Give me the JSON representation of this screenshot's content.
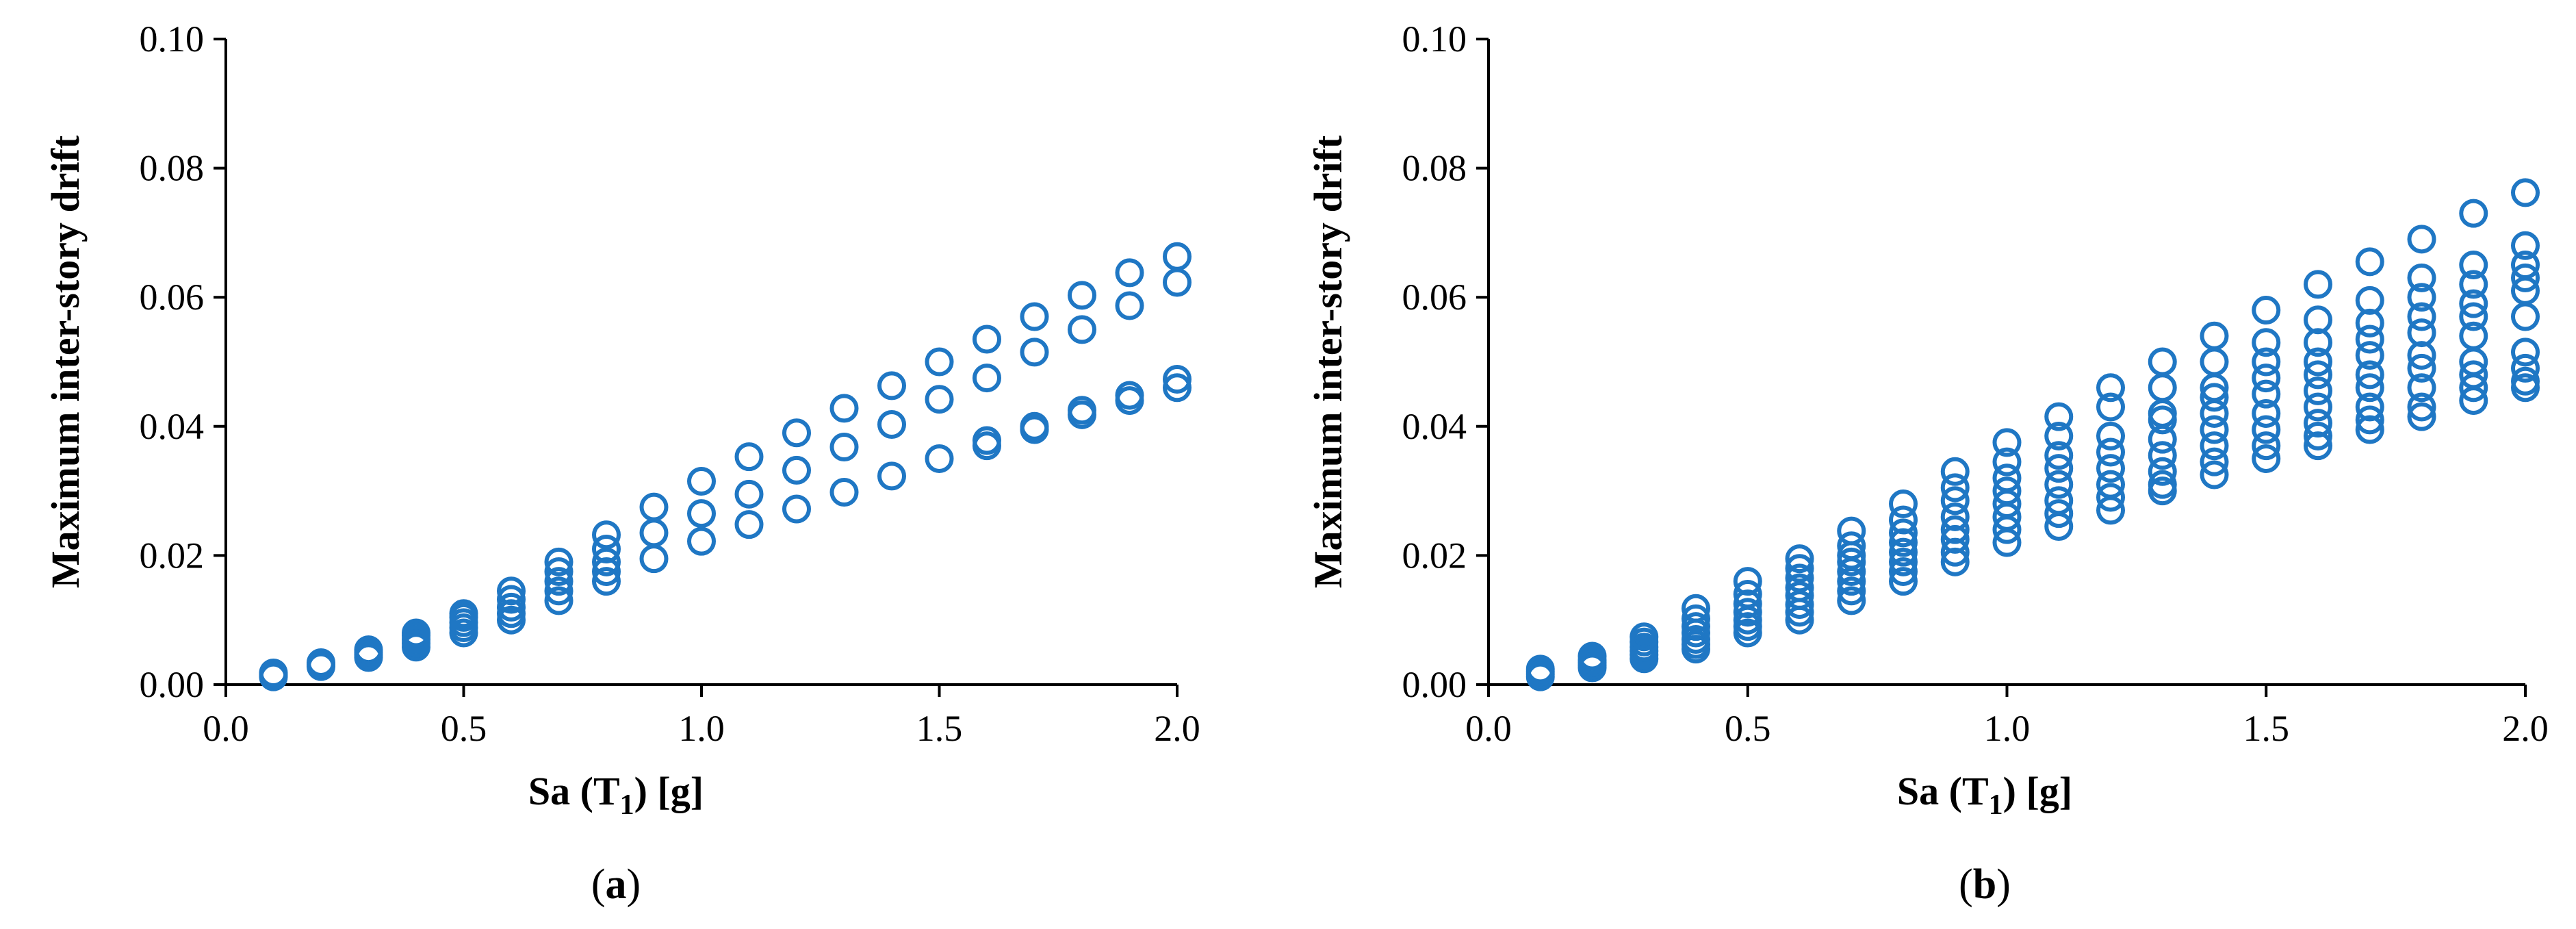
{
  "colors": {
    "marker": "#1f77c4",
    "axis": "#000000"
  },
  "chart_data": [
    {
      "type": "scatter",
      "panel_label": {
        "open": "(",
        "letter": "a",
        "close": ")"
      },
      "xlabel": {
        "base": "Sa (T",
        "sub": "1",
        "rest": ") [g]"
      },
      "ylabel": "Maximum inter-story drift",
      "xlim": [
        0.0,
        2.0
      ],
      "ylim": [
        0.0,
        0.1
      ],
      "x_ticks": [
        "0.0",
        "0.5",
        "1.0",
        "1.5",
        "2.0"
      ],
      "y_ticks": [
        "0.00",
        "0.02",
        "0.04",
        "0.06",
        "0.08",
        "0.10"
      ],
      "grid": false,
      "marker": "open-circle",
      "series": [
        {
          "x": [
            0.1,
            0.1,
            0.1,
            0.2,
            0.2,
            0.2,
            0.3,
            0.3,
            0.3,
            0.3,
            0.4,
            0.4,
            0.4,
            0.4,
            0.4,
            0.5,
            0.5,
            0.5,
            0.5,
            0.5,
            0.6,
            0.6,
            0.6,
            0.6,
            0.6,
            0.7,
            0.7,
            0.7,
            0.7,
            0.7,
            0.8,
            0.8,
            0.8,
            0.8,
            0.8,
            0.9,
            0.9,
            0.9,
            1.0,
            1.0,
            1.0,
            1.1,
            1.1,
            1.1,
            1.2,
            1.2,
            1.2,
            1.3,
            1.3,
            1.3,
            1.4,
            1.4,
            1.4,
            1.5,
            1.5,
            1.5,
            1.6,
            1.6,
            1.6,
            1.6,
            1.7,
            1.7,
            1.7,
            1.7,
            1.8,
            1.8,
            1.8,
            1.8,
            1.9,
            1.9,
            1.9,
            1.9,
            2.0,
            2.0,
            2.0,
            2.0
          ],
          "y": [
            0.0012,
            0.0015,
            0.0018,
            0.0028,
            0.0031,
            0.0034,
            0.0042,
            0.0046,
            0.005,
            0.0054,
            0.0058,
            0.0064,
            0.007,
            0.0076,
            0.008,
            0.008,
            0.0088,
            0.0096,
            0.0104,
            0.011,
            0.01,
            0.011,
            0.012,
            0.0132,
            0.0145,
            0.013,
            0.0145,
            0.016,
            0.0175,
            0.019,
            0.016,
            0.0175,
            0.019,
            0.021,
            0.0232,
            0.0195,
            0.0235,
            0.0275,
            0.0222,
            0.0265,
            0.0315,
            0.0248,
            0.0295,
            0.0353,
            0.0272,
            0.0332,
            0.039,
            0.0298,
            0.0368,
            0.0428,
            0.0323,
            0.0403,
            0.0463,
            0.035,
            0.0442,
            0.05,
            0.037,
            0.0378,
            0.0475,
            0.0535,
            0.0395,
            0.04,
            0.0515,
            0.057,
            0.0418,
            0.0425,
            0.055,
            0.0603,
            0.044,
            0.0448,
            0.0587,
            0.0638,
            0.046,
            0.0473,
            0.0623,
            0.0663
          ]
        }
      ]
    },
    {
      "type": "scatter",
      "panel_label": {
        "open": "(",
        "letter": "b",
        "close": ")"
      },
      "xlabel": {
        "base": "Sa (T",
        "sub": "1",
        "rest": ") [g]"
      },
      "ylabel": "Maximum inter-story drift",
      "xlim": [
        0.0,
        2.0
      ],
      "ylim": [
        0.0,
        0.1
      ],
      "x_ticks": [
        "0.0",
        "0.5",
        "1.0",
        "1.5",
        "2.0"
      ],
      "y_ticks": [
        "0.00",
        "0.02",
        "0.04",
        "0.06",
        "0.08",
        "0.10"
      ],
      "grid": false,
      "marker": "open-circle",
      "series": [
        {
          "x": [
            0.1,
            0.1,
            0.1,
            0.1,
            0.2,
            0.2,
            0.2,
            0.2,
            0.2,
            0.3,
            0.3,
            0.3,
            0.3,
            0.3,
            0.3,
            0.4,
            0.4,
            0.4,
            0.4,
            0.4,
            0.4,
            0.4,
            0.5,
            0.5,
            0.5,
            0.5,
            0.5,
            0.5,
            0.5,
            0.6,
            0.6,
            0.6,
            0.6,
            0.6,
            0.6,
            0.6,
            0.6,
            0.7,
            0.7,
            0.7,
            0.7,
            0.7,
            0.7,
            0.7,
            0.7,
            0.8,
            0.8,
            0.8,
            0.8,
            0.8,
            0.8,
            0.8,
            0.8,
            0.9,
            0.9,
            0.9,
            0.9,
            0.9,
            0.9,
            0.9,
            0.9,
            1.0,
            1.0,
            1.0,
            1.0,
            1.0,
            1.0,
            1.0,
            1.0,
            1.1,
            1.1,
            1.1,
            1.1,
            1.1,
            1.1,
            1.1,
            1.1,
            1.2,
            1.2,
            1.2,
            1.2,
            1.2,
            1.2,
            1.2,
            1.2,
            1.3,
            1.3,
            1.3,
            1.3,
            1.3,
            1.3,
            1.3,
            1.3,
            1.3,
            1.4,
            1.4,
            1.4,
            1.4,
            1.4,
            1.4,
            1.4,
            1.4,
            1.4,
            1.5,
            1.5,
            1.5,
            1.5,
            1.5,
            1.5,
            1.5,
            1.5,
            1.5,
            1.6,
            1.6,
            1.6,
            1.6,
            1.6,
            1.6,
            1.6,
            1.6,
            1.6,
            1.6,
            1.7,
            1.7,
            1.7,
            1.7,
            1.7,
            1.7,
            1.7,
            1.7,
            1.7,
            1.7,
            1.8,
            1.8,
            1.8,
            1.8,
            1.8,
            1.8,
            1.8,
            1.8,
            1.8,
            1.8,
            1.9,
            1.9,
            1.9,
            1.9,
            1.9,
            1.9,
            1.9,
            1.9,
            1.9,
            1.9,
            2.0,
            2.0,
            2.0,
            2.0,
            2.0,
            2.0,
            2.0,
            2.0,
            2.0,
            2.0
          ],
          "y": [
            0.0012,
            0.0016,
            0.002,
            0.0024,
            0.0026,
            0.003,
            0.0034,
            0.0038,
            0.0044,
            0.004,
            0.0046,
            0.0052,
            0.0058,
            0.0066,
            0.0074,
            0.0055,
            0.0062,
            0.007,
            0.008,
            0.009,
            0.0102,
            0.0118,
            0.008,
            0.009,
            0.01,
            0.0112,
            0.0125,
            0.014,
            0.016,
            0.01,
            0.0112,
            0.0124,
            0.0138,
            0.015,
            0.0165,
            0.018,
            0.0195,
            0.013,
            0.0145,
            0.016,
            0.0175,
            0.019,
            0.02,
            0.0215,
            0.0238,
            0.016,
            0.0175,
            0.019,
            0.0205,
            0.022,
            0.0235,
            0.0255,
            0.028,
            0.019,
            0.0205,
            0.0225,
            0.024,
            0.026,
            0.0285,
            0.0305,
            0.033,
            0.022,
            0.024,
            0.026,
            0.028,
            0.03,
            0.032,
            0.0345,
            0.0375,
            0.0245,
            0.0265,
            0.0285,
            0.031,
            0.0335,
            0.0355,
            0.0385,
            0.0415,
            0.027,
            0.029,
            0.031,
            0.0335,
            0.036,
            0.0385,
            0.043,
            0.046,
            0.03,
            0.031,
            0.033,
            0.0355,
            0.038,
            0.041,
            0.042,
            0.046,
            0.05,
            0.0325,
            0.0345,
            0.037,
            0.0395,
            0.042,
            0.0445,
            0.046,
            0.05,
            0.054,
            0.035,
            0.037,
            0.0395,
            0.042,
            0.045,
            0.0475,
            0.05,
            0.053,
            0.058,
            0.037,
            0.0385,
            0.0405,
            0.043,
            0.0455,
            0.048,
            0.05,
            0.053,
            0.0565,
            0.062,
            0.0395,
            0.041,
            0.043,
            0.046,
            0.048,
            0.051,
            0.0535,
            0.056,
            0.0595,
            0.0655,
            0.0415,
            0.043,
            0.046,
            0.049,
            0.051,
            0.0545,
            0.057,
            0.06,
            0.063,
            0.069,
            0.044,
            0.046,
            0.048,
            0.05,
            0.054,
            0.057,
            0.059,
            0.062,
            0.065,
            0.073,
            0.046,
            0.047,
            0.049,
            0.0515,
            0.057,
            0.061,
            0.063,
            0.065,
            0.068,
            0.0762
          ]
        }
      ]
    }
  ]
}
